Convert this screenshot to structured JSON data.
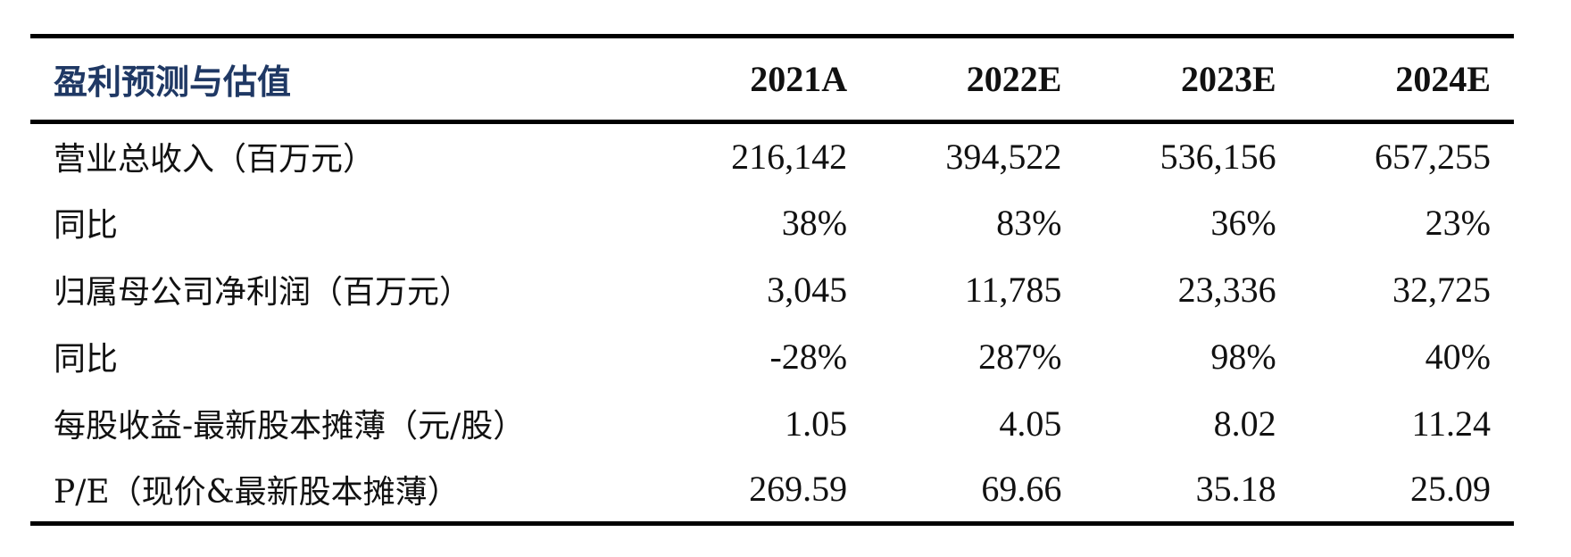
{
  "table": {
    "header_label": "盈利预测与估值",
    "years": [
      "2021A",
      "2022E",
      "2023E",
      "2024E"
    ],
    "rows": [
      {
        "label": "营业总收入（百万元）",
        "values": [
          "216,142",
          "394,522",
          "536,156",
          "657,255"
        ]
      },
      {
        "label": "同比",
        "values": [
          "38%",
          "83%",
          "36%",
          "23%"
        ]
      },
      {
        "label": "归属母公司净利润（百万元）",
        "values": [
          "3,045",
          "11,785",
          "23,336",
          "32,725"
        ]
      },
      {
        "label": "同比",
        "values": [
          "-28%",
          "287%",
          "98%",
          "40%"
        ]
      },
      {
        "label": "每股收益-最新股本摊薄（元/股）",
        "values": [
          "1.05",
          "4.05",
          "8.02",
          "11.24"
        ]
      },
      {
        "label": "P/E（现价&最新股本摊薄）",
        "values": [
          "269.59",
          "69.66",
          "35.18",
          "25.09"
        ]
      }
    ]
  },
  "colors": {
    "header_label": "#1f3864",
    "rule": "#000000",
    "text": "#111111"
  }
}
